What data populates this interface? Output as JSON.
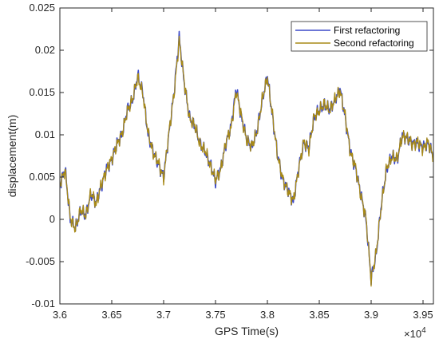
{
  "chart_data": {
    "type": "line",
    "title": "",
    "xlabel": "GPS Time(s)",
    "ylabel": "displacement(m)",
    "x_exponent_label": "×10",
    "x_exponent_power": "4",
    "xlim": [
      3.6,
      3.96
    ],
    "ylim": [
      -0.01,
      0.025
    ],
    "x_ticks": [
      3.6,
      3.65,
      3.7,
      3.75,
      3.8,
      3.85,
      3.9,
      3.95
    ],
    "x_tick_labels": [
      "3.6",
      "3.65",
      "3.7",
      "3.75",
      "3.8",
      "3.85",
      "3.9",
      "3.95"
    ],
    "y_ticks": [
      -0.01,
      -0.005,
      0,
      0.005,
      0.01,
      0.015,
      0.02,
      0.025
    ],
    "y_tick_labels": [
      "-0.01",
      "-0.005",
      "0",
      "0.005",
      "0.01",
      "0.015",
      "0.02",
      "0.025"
    ],
    "grid": false,
    "legend_position": "top-right",
    "series": [
      {
        "name": "First refactoring",
        "color": "#3b49c8",
        "x": [
          3.6,
          3.605,
          3.61,
          3.615,
          3.62,
          3.625,
          3.63,
          3.635,
          3.64,
          3.645,
          3.65,
          3.655,
          3.66,
          3.665,
          3.67,
          3.675,
          3.68,
          3.685,
          3.69,
          3.695,
          3.7,
          3.705,
          3.71,
          3.715,
          3.72,
          3.725,
          3.73,
          3.735,
          3.74,
          3.745,
          3.75,
          3.755,
          3.76,
          3.765,
          3.77,
          3.775,
          3.78,
          3.785,
          3.79,
          3.795,
          3.8,
          3.805,
          3.81,
          3.815,
          3.82,
          3.825,
          3.83,
          3.835,
          3.84,
          3.845,
          3.85,
          3.855,
          3.86,
          3.865,
          3.87,
          3.875,
          3.88,
          3.885,
          3.89,
          3.895,
          3.9,
          3.905,
          3.91,
          3.915,
          3.92,
          3.925,
          3.93,
          3.935,
          3.94,
          3.945,
          3.95,
          3.955,
          3.96
        ],
        "y": [
          0.004,
          0.006,
          0.0,
          -0.001,
          0.001,
          0.0005,
          0.003,
          0.002,
          0.004,
          0.006,
          0.007,
          0.009,
          0.01,
          0.013,
          0.014,
          0.017,
          0.015,
          0.01,
          0.008,
          0.0065,
          0.005,
          0.01,
          0.015,
          0.0215,
          0.016,
          0.012,
          0.011,
          0.009,
          0.008,
          0.0065,
          0.0045,
          0.006,
          0.009,
          0.011,
          0.0155,
          0.012,
          0.0095,
          0.0085,
          0.0105,
          0.014,
          0.017,
          0.012,
          0.0075,
          0.0045,
          0.0035,
          0.002,
          0.006,
          0.009,
          0.0085,
          0.012,
          0.013,
          0.0135,
          0.013,
          0.014,
          0.0155,
          0.012,
          0.008,
          0.006,
          0.003,
          0.0,
          -0.007,
          -0.004,
          0.002,
          0.006,
          0.0075,
          0.007,
          0.01,
          0.0095,
          0.009,
          0.009,
          0.0085,
          0.009,
          0.0075
        ]
      },
      {
        "name": "Second refactoring",
        "color": "#a88a16",
        "x": [
          3.6,
          3.605,
          3.61,
          3.615,
          3.62,
          3.625,
          3.63,
          3.635,
          3.64,
          3.645,
          3.65,
          3.655,
          3.66,
          3.665,
          3.67,
          3.675,
          3.68,
          3.685,
          3.69,
          3.695,
          3.7,
          3.705,
          3.71,
          3.715,
          3.72,
          3.725,
          3.73,
          3.735,
          3.74,
          3.745,
          3.75,
          3.755,
          3.76,
          3.765,
          3.77,
          3.775,
          3.78,
          3.785,
          3.79,
          3.795,
          3.8,
          3.805,
          3.81,
          3.815,
          3.82,
          3.825,
          3.83,
          3.835,
          3.84,
          3.845,
          3.85,
          3.855,
          3.86,
          3.865,
          3.87,
          3.875,
          3.88,
          3.885,
          3.89,
          3.895,
          3.9,
          3.905,
          3.91,
          3.915,
          3.92,
          3.925,
          3.93,
          3.935,
          3.94,
          3.945,
          3.95,
          3.955,
          3.96
        ],
        "y": [
          0.0042,
          0.0058,
          0.0002,
          -0.0012,
          0.0012,
          0.0004,
          0.0032,
          0.0018,
          0.0042,
          0.0058,
          0.0072,
          0.0088,
          0.0102,
          0.0128,
          0.0142,
          0.0168,
          0.0148,
          0.0102,
          0.0078,
          0.0067,
          0.0048,
          0.0102,
          0.0148,
          0.0212,
          0.0162,
          0.0118,
          0.0112,
          0.0088,
          0.0082,
          0.0063,
          0.0047,
          0.0058,
          0.0092,
          0.0108,
          0.0152,
          0.0122,
          0.0093,
          0.0087,
          0.0103,
          0.0142,
          0.0168,
          0.0122,
          0.0073,
          0.0047,
          0.0033,
          0.0022,
          0.0058,
          0.0092,
          0.0083,
          0.0122,
          0.0128,
          0.0137,
          0.0128,
          0.0142,
          0.0152,
          0.0122,
          0.0078,
          0.0062,
          0.0028,
          0.0002,
          -0.0072,
          -0.0038,
          0.0018,
          0.0062,
          0.0073,
          0.0072,
          0.0098,
          0.0097,
          0.0088,
          0.0092,
          0.0083,
          0.0092,
          0.0073
        ]
      }
    ]
  }
}
